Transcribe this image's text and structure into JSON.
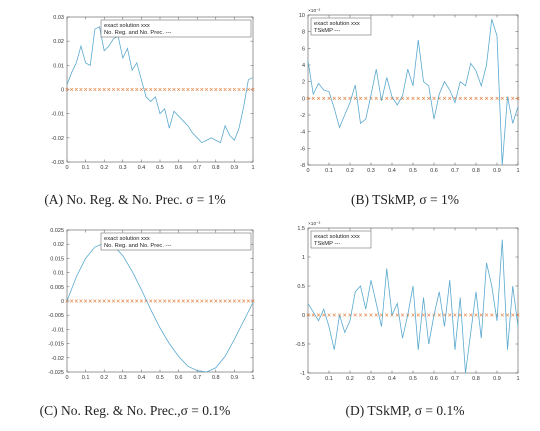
{
  "chart_data": [
    {
      "type": "line",
      "caption": "(A) No. Reg. & No. Prec. σ = 1%",
      "x_ticks": [
        "0",
        "0.1",
        "0.2",
        "0.3",
        "0.4",
        "0.5",
        "0.6",
        "0.7",
        "0.8",
        "0.9",
        "1"
      ],
      "y_ticks": [
        "-0.03",
        "-0.02",
        "-0.01",
        "0",
        "0.01",
        "0.02",
        "0.03"
      ],
      "y_exponent": "",
      "xlim": [
        0,
        1
      ],
      "ylim": [
        -0.03,
        0.03
      ],
      "legend": [
        "exact solution  xxx",
        "No. Reg. and No. Prec. ---"
      ],
      "legend_position": "top-right",
      "grid": false,
      "series": [
        {
          "role": "exact",
          "marker": "x",
          "color": "#e07b39",
          "x": [
            0.0,
            0.025,
            0.05,
            0.075,
            0.1,
            0.125,
            0.15,
            0.175,
            0.2,
            0.225,
            0.25,
            0.275,
            0.3,
            0.325,
            0.35,
            0.375,
            0.4,
            0.425,
            0.45,
            0.475,
            0.5,
            0.525,
            0.55,
            0.575,
            0.6,
            0.625,
            0.65,
            0.675,
            0.7,
            0.725,
            0.75,
            0.775,
            0.8,
            0.825,
            0.85,
            0.875,
            0.9,
            0.925,
            0.95,
            0.975,
            1.0
          ],
          "y": [
            0,
            0,
            0,
            0,
            0,
            0,
            0,
            0,
            0,
            0,
            0,
            0,
            0,
            0,
            0,
            0,
            0,
            0,
            0,
            0,
            0,
            0,
            0,
            0,
            0,
            0,
            0,
            0,
            0,
            0,
            0,
            0,
            0,
            0,
            0,
            0,
            0,
            0,
            0,
            0,
            0
          ]
        },
        {
          "role": "computed",
          "color": "#5aa9cf",
          "x": [
            0.0,
            0.025,
            0.05,
            0.075,
            0.1,
            0.125,
            0.15,
            0.175,
            0.2,
            0.225,
            0.25,
            0.275,
            0.3,
            0.325,
            0.35,
            0.375,
            0.4,
            0.425,
            0.45,
            0.475,
            0.5,
            0.525,
            0.55,
            0.575,
            0.6,
            0.625,
            0.65,
            0.675,
            0.7,
            0.725,
            0.75,
            0.775,
            0.8,
            0.825,
            0.85,
            0.875,
            0.9,
            0.925,
            0.95,
            0.975,
            1.0
          ],
          "y": [
            0.002,
            0.007,
            0.011,
            0.018,
            0.011,
            0.01,
            0.025,
            0.026,
            0.016,
            0.018,
            0.021,
            0.022,
            0.013,
            0.017,
            0.008,
            0.011,
            0.004,
            -0.003,
            -0.005,
            -0.003,
            -0.01,
            -0.008,
            -0.016,
            -0.009,
            -0.011,
            -0.013,
            -0.015,
            -0.018,
            -0.02,
            -0.022,
            -0.021,
            -0.02,
            -0.021,
            -0.022,
            -0.015,
            -0.019,
            -0.021,
            -0.016,
            -0.007,
            0.004,
            0.005
          ]
        }
      ]
    },
    {
      "type": "line",
      "caption": "(B) TSkMP, σ = 1%",
      "x_ticks": [
        "0",
        "0.1",
        "0.2",
        "0.3",
        "0.4",
        "0.5",
        "0.6",
        "0.7",
        "0.8",
        "0.9",
        "1"
      ],
      "y_ticks": [
        "-8",
        "-6",
        "-4",
        "-2",
        "0",
        "2",
        "4",
        "6",
        "8",
        "10"
      ],
      "y_exponent": "×10⁻³",
      "xlim": [
        0,
        1
      ],
      "ylim": [
        -8,
        10
      ],
      "legend": [
        "exact solution  xxx",
        "TSkMP  ---"
      ],
      "legend_position": "top-left",
      "grid": false,
      "series": [
        {
          "role": "exact",
          "marker": "x",
          "color": "#e07b39",
          "x": [
            0.0,
            0.025,
            0.05,
            0.075,
            0.1,
            0.125,
            0.15,
            0.175,
            0.2,
            0.225,
            0.25,
            0.275,
            0.3,
            0.325,
            0.35,
            0.375,
            0.4,
            0.425,
            0.45,
            0.475,
            0.5,
            0.525,
            0.55,
            0.575,
            0.6,
            0.625,
            0.65,
            0.675,
            0.7,
            0.725,
            0.75,
            0.775,
            0.8,
            0.825,
            0.85,
            0.875,
            0.9,
            0.925,
            0.95,
            0.975,
            1.0
          ],
          "y": [
            0,
            0,
            0,
            0,
            0,
            0,
            0,
            0,
            0,
            0,
            0,
            0,
            0,
            0,
            0,
            0,
            0,
            0,
            0,
            0,
            0,
            0,
            0,
            0,
            0,
            0,
            0,
            0,
            0,
            0,
            0,
            0,
            0,
            0,
            0,
            0,
            0,
            0,
            0,
            0,
            0
          ]
        },
        {
          "role": "computed",
          "color": "#5aa9cf",
          "x": [
            0.0,
            0.025,
            0.05,
            0.075,
            0.1,
            0.125,
            0.15,
            0.175,
            0.2,
            0.225,
            0.25,
            0.275,
            0.3,
            0.325,
            0.35,
            0.375,
            0.4,
            0.425,
            0.45,
            0.475,
            0.5,
            0.525,
            0.55,
            0.575,
            0.6,
            0.625,
            0.65,
            0.675,
            0.7,
            0.725,
            0.75,
            0.775,
            0.8,
            0.825,
            0.85,
            0.875,
            0.9,
            0.925,
            0.95,
            0.975,
            1.0
          ],
          "y": [
            4.5,
            0.5,
            1.8,
            1.0,
            0.8,
            -1.2,
            -3.5,
            -2.0,
            -0.5,
            1.6,
            -3.0,
            -2.5,
            0.4,
            3.5,
            -0.3,
            2.5,
            0.2,
            -0.8,
            0.3,
            3.5,
            1.5,
            7.0,
            2.0,
            1.5,
            -2.5,
            0.5,
            2.0,
            1.0,
            -0.5,
            2.0,
            1.5,
            4.2,
            3.3,
            1.5,
            4.0,
            9.5,
            7.5,
            -8.0,
            0.2,
            -3.0,
            -1.0
          ]
        }
      ]
    },
    {
      "type": "line",
      "caption": "(C) No. Reg. & No. Prec.,σ = 0.1%",
      "x_ticks": [
        "0",
        "0.1",
        "0.2",
        "0.3",
        "0.4",
        "0.5",
        "0.6",
        "0.7",
        "0.8",
        "0.9",
        "1"
      ],
      "y_ticks": [
        "-0.025",
        "-0.02",
        "-0.015",
        "-0.01",
        "-0.005",
        "0",
        "0.005",
        "0.01",
        "0.015",
        "0.02",
        "0.025"
      ],
      "y_exponent": "",
      "xlim": [
        0,
        1
      ],
      "ylim": [
        -0.025,
        0.025
      ],
      "legend": [
        "exact solution  xxx",
        "No. Reg. and No. Prec. ---"
      ],
      "legend_position": "top-right",
      "grid": false,
      "series": [
        {
          "role": "exact",
          "marker": "x",
          "color": "#e07b39",
          "x": [
            0.0,
            0.025,
            0.05,
            0.075,
            0.1,
            0.125,
            0.15,
            0.175,
            0.2,
            0.225,
            0.25,
            0.275,
            0.3,
            0.325,
            0.35,
            0.375,
            0.4,
            0.425,
            0.45,
            0.475,
            0.5,
            0.525,
            0.55,
            0.575,
            0.6,
            0.625,
            0.65,
            0.675,
            0.7,
            0.725,
            0.75,
            0.775,
            0.8,
            0.825,
            0.85,
            0.875,
            0.9,
            0.925,
            0.95,
            0.975,
            1.0
          ],
          "y": [
            0,
            0,
            0,
            0,
            0,
            0,
            0,
            0,
            0,
            0,
            0,
            0,
            0,
            0,
            0,
            0,
            0,
            0,
            0,
            0,
            0,
            0,
            0,
            0,
            0,
            0,
            0,
            0,
            0,
            0,
            0,
            0,
            0,
            0,
            0,
            0,
            0,
            0,
            0,
            0,
            0
          ]
        },
        {
          "role": "computed",
          "color": "#5aa9cf",
          "x": [
            0.0,
            0.05,
            0.1,
            0.15,
            0.2,
            0.25,
            0.3,
            0.35,
            0.4,
            0.45,
            0.5,
            0.55,
            0.6,
            0.65,
            0.7,
            0.75,
            0.8,
            0.85,
            0.9,
            0.95,
            1.0
          ],
          "y": [
            0.0,
            0.0085,
            0.015,
            0.019,
            0.0203,
            0.0195,
            0.016,
            0.0105,
            0.004,
            -0.003,
            -0.0095,
            -0.015,
            -0.0195,
            -0.023,
            -0.0245,
            -0.025,
            -0.0235,
            -0.0195,
            -0.0135,
            -0.007,
            -0.0005
          ]
        }
      ]
    },
    {
      "type": "line",
      "caption": "(D) TSkMP, σ = 0.1%",
      "x_ticks": [
        "0",
        "0.1",
        "0.2",
        "0.3",
        "0.4",
        "0.5",
        "0.6",
        "0.7",
        "0.8",
        "0.9",
        "1"
      ],
      "y_ticks": [
        "-1",
        "-0.5",
        "0",
        "0.5",
        "1",
        "1.5"
      ],
      "y_exponent": "×10⁻³",
      "xlim": [
        0,
        1
      ],
      "ylim": [
        -1,
        1.5
      ],
      "legend": [
        "exact solution  xxx",
        "TSkMP  ---"
      ],
      "legend_position": "top-left",
      "grid": false,
      "series": [
        {
          "role": "exact",
          "marker": "x",
          "color": "#e07b39",
          "x": [
            0.0,
            0.025,
            0.05,
            0.075,
            0.1,
            0.125,
            0.15,
            0.175,
            0.2,
            0.225,
            0.25,
            0.275,
            0.3,
            0.325,
            0.35,
            0.375,
            0.4,
            0.425,
            0.45,
            0.475,
            0.5,
            0.525,
            0.55,
            0.575,
            0.6,
            0.625,
            0.65,
            0.675,
            0.7,
            0.725,
            0.75,
            0.775,
            0.8,
            0.825,
            0.85,
            0.875,
            0.9,
            0.925,
            0.95,
            0.975,
            1.0
          ],
          "y": [
            0,
            0,
            0,
            0,
            0,
            0,
            0,
            0,
            0,
            0,
            0,
            0,
            0,
            0,
            0,
            0,
            0,
            0,
            0,
            0,
            0,
            0,
            0,
            0,
            0,
            0,
            0,
            0,
            0,
            0,
            0,
            0,
            0,
            0,
            0,
            0,
            0,
            0,
            0,
            0,
            0
          ]
        },
        {
          "role": "computed",
          "color": "#5aa9cf",
          "x": [
            0.0,
            0.025,
            0.05,
            0.075,
            0.1,
            0.125,
            0.15,
            0.175,
            0.2,
            0.225,
            0.25,
            0.275,
            0.3,
            0.325,
            0.35,
            0.375,
            0.4,
            0.425,
            0.45,
            0.475,
            0.5,
            0.525,
            0.55,
            0.575,
            0.6,
            0.625,
            0.65,
            0.675,
            0.7,
            0.725,
            0.75,
            0.775,
            0.8,
            0.825,
            0.85,
            0.875,
            0.9,
            0.925,
            0.95,
            0.975,
            1.0
          ],
          "y": [
            0.2,
            0.05,
            -0.1,
            0.1,
            -0.2,
            -0.6,
            0.0,
            -0.3,
            -0.1,
            0.4,
            0.5,
            0.1,
            0.6,
            0.2,
            -0.2,
            0.8,
            0.0,
            0.2,
            -0.4,
            0.0,
            0.5,
            -0.6,
            0.3,
            -0.5,
            0.0,
            0.4,
            -0.2,
            0.6,
            -0.6,
            0.3,
            -1.0,
            -0.3,
            0.4,
            -0.4,
            0.9,
            0.5,
            -0.1,
            1.3,
            -0.6,
            0.5,
            -0.2
          ]
        }
      ]
    }
  ]
}
